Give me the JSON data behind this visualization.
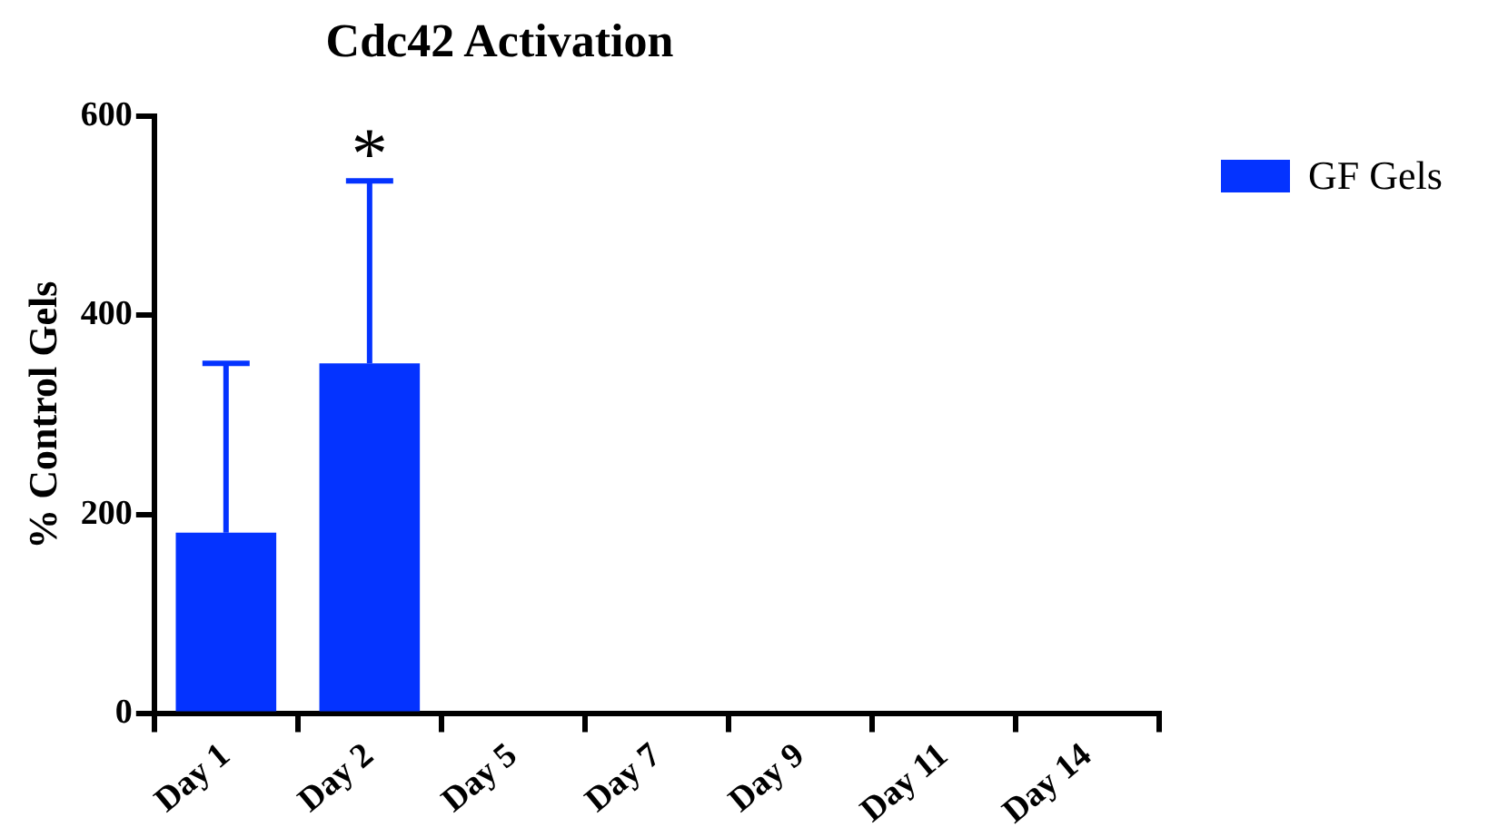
{
  "chart_data": {
    "type": "bar",
    "title": "Cdc42 Activation",
    "ylabel": "% Control Gels",
    "categories": [
      "Day 1",
      "Day 2",
      "Day 5",
      "Day 7",
      "Day 9",
      "Day 11",
      "Day 14"
    ],
    "series": [
      {
        "name": "GF Gels",
        "color": "#0433ff",
        "values": [
          182,
          352,
          null,
          null,
          null,
          null,
          null
        ],
        "errors": [
          [
            182,
            352
          ],
          [
            352,
            535
          ],
          null,
          null,
          null,
          null,
          null
        ]
      }
    ],
    "ylim": [
      0,
      600
    ],
    "yticks": [
      0,
      200,
      400,
      600
    ],
    "grid": false,
    "legend": "top right",
    "annotations": [
      "*"
    ]
  }
}
